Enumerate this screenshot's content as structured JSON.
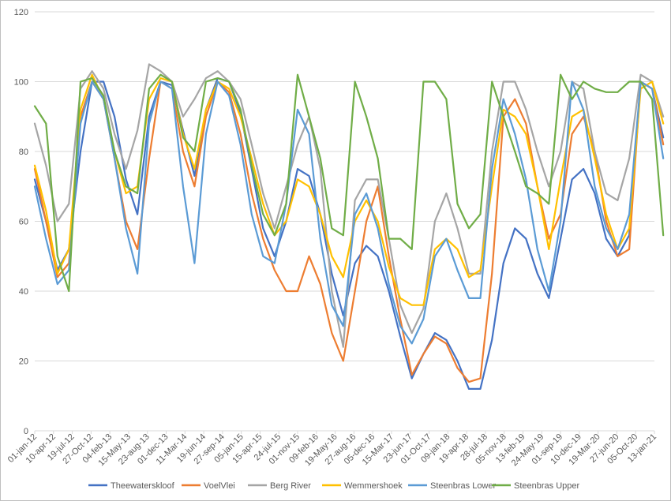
{
  "chart_data": {
    "type": "line",
    "title": "",
    "xlabel": "",
    "ylabel": "",
    "ylim": [
      0,
      120
    ],
    "yticks": [
      0,
      20,
      40,
      60,
      80,
      100,
      120
    ],
    "grid": "horizontal",
    "legend_position": "bottom",
    "x_tick_labels": [
      "01-jan-12",
      "10-apr-12",
      "19-jul-12",
      "27-Oct-12",
      "04-feb-13",
      "15-May-13",
      "23-aug-13",
      "01-dec-13",
      "11-Mar-14",
      "19-jun-14",
      "27-sep-14",
      "05-jan-15",
      "15-apr-15",
      "24-jul-15",
      "01-nov-15",
      "09-feb-16",
      "19-May-16",
      "27-aug-16",
      "05-dec-16",
      "15-Mar-17",
      "23-jun-17",
      "01-Oct-17",
      "09-jan-18",
      "19-apr-18",
      "28-jul-18",
      "05-nov-18",
      "13-feb-19",
      "24-May-19",
      "01-sep-19",
      "10-dec-19",
      "19-Mar-20",
      "27-jun-20",
      "05-Oct-20",
      "13-jan-21"
    ],
    "x_values": [
      "01-jan-12",
      "01-mar-12",
      "01-may-12",
      "01-jul-12",
      "01-sep-12",
      "01-nov-12",
      "01-jan-13",
      "01-mar-13",
      "01-may-13",
      "01-jul-13",
      "01-sep-13",
      "01-nov-13",
      "01-jan-14",
      "01-mar-14",
      "01-may-14",
      "01-jul-14",
      "01-sep-14",
      "01-nov-14",
      "01-jan-15",
      "01-mar-15",
      "01-may-15",
      "01-jul-15",
      "01-sep-15",
      "01-nov-15",
      "01-jan-16",
      "01-mar-16",
      "01-may-16",
      "01-jul-16",
      "01-sep-16",
      "01-nov-16",
      "01-jan-17",
      "01-mar-17",
      "01-may-17",
      "01-jul-17",
      "01-sep-17",
      "01-nov-17",
      "01-jan-18",
      "01-mar-18",
      "01-may-18",
      "01-jul-18",
      "01-sep-18",
      "01-nov-18",
      "01-jan-19",
      "01-mar-19",
      "01-may-19",
      "01-jul-19",
      "01-sep-19",
      "01-nov-19",
      "01-jan-20",
      "01-mar-20",
      "01-may-20",
      "01-jul-20",
      "01-sep-20",
      "01-nov-20",
      "01-jan-21",
      "01-mar-21"
    ],
    "series": [
      {
        "name": "Theewaterskloof",
        "color": "#4472C4",
        "values": [
          72,
          60,
          46,
          52,
          80,
          100,
          100,
          90,
          72,
          62,
          90,
          100,
          99,
          86,
          73,
          92,
          101,
          100,
          91,
          75,
          58,
          50,
          60,
          75,
          73,
          62,
          45,
          33,
          48,
          53,
          50,
          40,
          27,
          15,
          22,
          28,
          26,
          20,
          12,
          12,
          26,
          48,
          58,
          55,
          45,
          38,
          55,
          72,
          75,
          68,
          55,
          50,
          56,
          100,
          98,
          84
        ]
      },
      {
        "name": "VoelVlei",
        "color": "#ED7D31",
        "values": [
          75,
          60,
          44,
          48,
          90,
          100,
          95,
          78,
          60,
          52,
          78,
          100,
          98,
          80,
          70,
          90,
          100,
          97,
          85,
          68,
          55,
          46,
          40,
          40,
          50,
          42,
          28,
          20,
          40,
          60,
          70,
          50,
          32,
          16,
          22,
          27,
          25,
          18,
          14,
          15,
          45,
          90,
          95,
          88,
          70,
          55,
          62,
          85,
          90,
          80,
          60,
          50,
          52,
          100,
          98,
          82
        ]
      },
      {
        "name": "Berg River",
        "color": "#A5A5A5",
        "values": [
          88,
          76,
          60,
          65,
          98,
          103,
          98,
          85,
          75,
          86,
          105,
          103,
          100,
          90,
          95,
          101,
          103,
          100,
          95,
          82,
          68,
          58,
          70,
          82,
          90,
          75,
          40,
          24,
          66,
          72,
          72,
          55,
          36,
          28,
          35,
          60,
          68,
          58,
          45,
          45,
          80,
          100,
          100,
          92,
          80,
          70,
          80,
          100,
          98,
          80,
          68,
          66,
          78,
          102,
          100,
          90
        ]
      },
      {
        "name": "Wemmershoek",
        "color": "#FFC000",
        "values": [
          76,
          63,
          45,
          52,
          92,
          102,
          95,
          80,
          68,
          70,
          95,
          101,
          100,
          85,
          75,
          92,
          100,
          98,
          90,
          78,
          65,
          56,
          60,
          72,
          70,
          62,
          50,
          44,
          60,
          66,
          60,
          47,
          38,
          36,
          36,
          52,
          55,
          52,
          44,
          46,
          70,
          92,
          90,
          85,
          70,
          52,
          72,
          90,
          92,
          78,
          62,
          52,
          58,
          98,
          100,
          88
        ]
      },
      {
        "name": "Steenbras Lower",
        "color": "#5B9BD5",
        "values": [
          70,
          55,
          42,
          46,
          88,
          100,
          95,
          78,
          58,
          45,
          88,
          100,
          98,
          70,
          48,
          85,
          100,
          96,
          82,
          62,
          50,
          48,
          65,
          92,
          85,
          55,
          36,
          30,
          62,
          68,
          58,
          42,
          30,
          25,
          32,
          50,
          55,
          46,
          38,
          38,
          75,
          95,
          85,
          72,
          52,
          40,
          60,
          100,
          92,
          70,
          58,
          52,
          62,
          100,
          98,
          78
        ]
      },
      {
        "name": "Steenbras Upper",
        "color": "#70AD47",
        "values": [
          93,
          88,
          50,
          40,
          100,
          101,
          96,
          80,
          70,
          68,
          98,
          102,
          100,
          84,
          80,
          100,
          101,
          100,
          92,
          76,
          62,
          56,
          65,
          102,
          90,
          78,
          58,
          56,
          100,
          90,
          78,
          55,
          55,
          52,
          100,
          100,
          95,
          65,
          58,
          62,
          100,
          90,
          80,
          70,
          68,
          65,
          102,
          95,
          100,
          98,
          97,
          97,
          100,
          100,
          95,
          56
        ]
      }
    ]
  }
}
